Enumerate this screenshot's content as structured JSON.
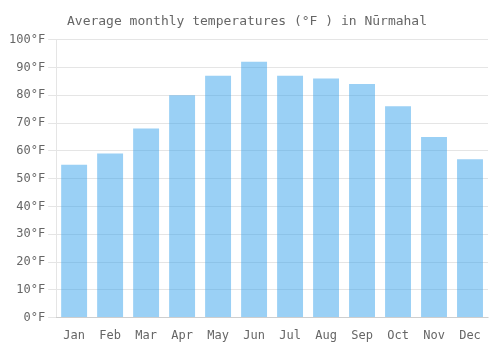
{
  "chart_data": {
    "type": "bar",
    "title": "Average monthly temperatures (°F ) in Nūrmahal",
    "categories": [
      "Jan",
      "Feb",
      "Mar",
      "Apr",
      "May",
      "Jun",
      "Jul",
      "Aug",
      "Sep",
      "Oct",
      "Nov",
      "Dec"
    ],
    "values": [
      55,
      59,
      68,
      80,
      87,
      92,
      87,
      86,
      84,
      76,
      65,
      57
    ],
    "ylim": [
      0,
      100
    ],
    "yticks": [
      {
        "value": 0,
        "label": "0°F"
      },
      {
        "value": 10,
        "label": "10°F"
      },
      {
        "value": 20,
        "label": "20°F"
      },
      {
        "value": 30,
        "label": "30°F"
      },
      {
        "value": 40,
        "label": "40°F"
      },
      {
        "value": 50,
        "label": "50°F"
      },
      {
        "value": 60,
        "label": "60°F"
      },
      {
        "value": 70,
        "label": "70°F"
      },
      {
        "value": 80,
        "label": "80°F"
      },
      {
        "value": 90,
        "label": "90°F"
      },
      {
        "value": 100,
        "label": "100°F"
      }
    ],
    "grid": true
  }
}
